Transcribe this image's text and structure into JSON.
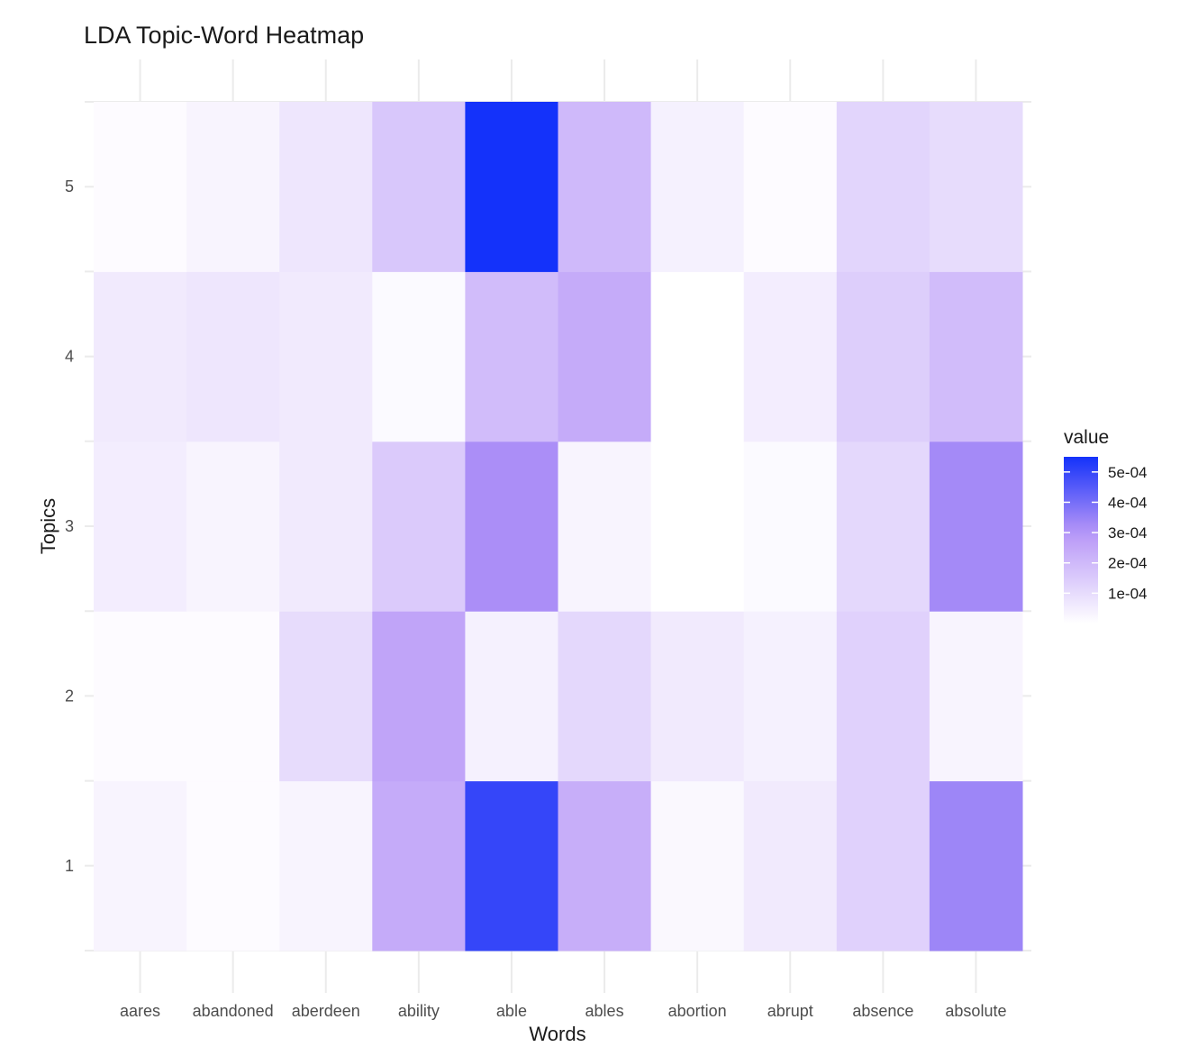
{
  "chart_data": {
    "type": "heatmap",
    "title": "LDA Topic-Word Heatmap",
    "xlabel": "Words",
    "ylabel": "Topics",
    "x_categories": [
      "aares",
      "abandoned",
      "aberdeen",
      "ability",
      "able",
      "ables",
      "abortion",
      "abrupt",
      "absence",
      "absolute"
    ],
    "y_categories": [
      "1",
      "2",
      "3",
      "4",
      "5"
    ],
    "values": [
      [
        3e-05,
        1e-05,
        3e-05,
        0.00024,
        0.0005,
        0.00023,
        2e-05,
        6e-05,
        0.00013,
        0.00034
      ],
      [
        1e-05,
        1e-05,
        0.0001,
        0.00026,
        4e-05,
        0.00011,
        6e-05,
        4e-05,
        0.00013,
        3e-05
      ],
      [
        5e-05,
        3e-05,
        6e-05,
        0.00015,
        0.00032,
        3e-05,
        0.0,
        1.5e-05,
        0.00011,
        0.00033
      ],
      [
        6e-05,
        7e-05,
        6e-05,
        1.5e-05,
        0.00019,
        0.00024,
        1e-06,
        5e-05,
        0.00014,
        0.00019
      ],
      [
        1e-05,
        3e-05,
        7e-05,
        0.00016,
        0.00055,
        0.0002,
        4e-05,
        1e-05,
        0.00012,
        0.0001
      ]
    ],
    "color_scale": {
      "low": "#ffffff",
      "mid": "#b695f7",
      "high": "#1432fa",
      "min": 0,
      "max": 0.00055
    },
    "legend": {
      "title": "value",
      "position": "right",
      "breaks": [
        "5e-04",
        "4e-04",
        "3e-04",
        "2e-04",
        "1e-04"
      ],
      "break_values": [
        0.0005,
        0.0004,
        0.0003,
        0.0002,
        0.0001
      ]
    },
    "grid": true
  }
}
